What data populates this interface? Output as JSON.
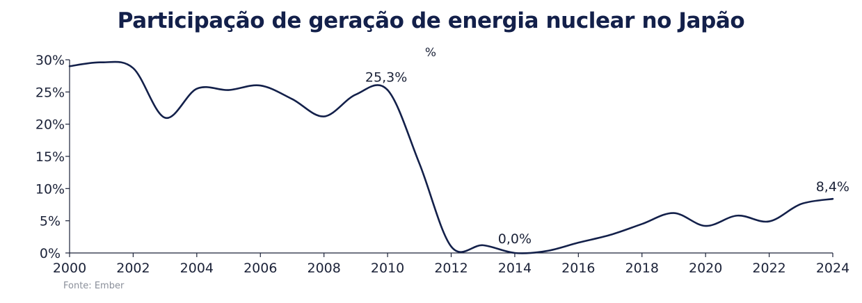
{
  "chart_data": {
    "type": "line",
    "title": "Participação de geração de energia nuclear no Japão",
    "unit_label": "%",
    "source": "Fonte: Ember",
    "xlim": [
      2000,
      2024
    ],
    "ylim": [
      0,
      30
    ],
    "x_ticks": [
      "2000",
      "2002",
      "2004",
      "2006",
      "2008",
      "2010",
      "2012",
      "2014",
      "2016",
      "2018",
      "2020",
      "2022",
      "2024"
    ],
    "y_ticks": [
      "0%",
      "5%",
      "10%",
      "15%",
      "20%",
      "25%",
      "30%"
    ],
    "grid": false,
    "series": [
      {
        "color": "#13204a",
        "x": [
          2000,
          2001,
          2002,
          2003,
          2004,
          2005,
          2006,
          2007,
          2008,
          2009,
          2010,
          2011,
          2012,
          2013,
          2014,
          2015,
          2016,
          2017,
          2018,
          2019,
          2020,
          2021,
          2022,
          2023,
          2024
        ],
        "y": [
          29.0,
          29.6,
          28.7,
          21.0,
          25.5,
          25.3,
          26.0,
          23.9,
          21.2,
          24.6,
          25.3,
          13.9,
          1.0,
          1.2,
          0.0,
          0.3,
          1.6,
          2.8,
          4.5,
          6.2,
          4.2,
          5.8,
          4.9,
          7.6,
          8.4
        ]
      }
    ],
    "annotations": [
      {
        "text": "25,3%",
        "x": 2010,
        "y": 25.3
      },
      {
        "text": "0,0%",
        "x": 2014,
        "y": 0.0
      },
      {
        "text": "8,4%",
        "x": 2024,
        "y": 8.4
      }
    ]
  }
}
